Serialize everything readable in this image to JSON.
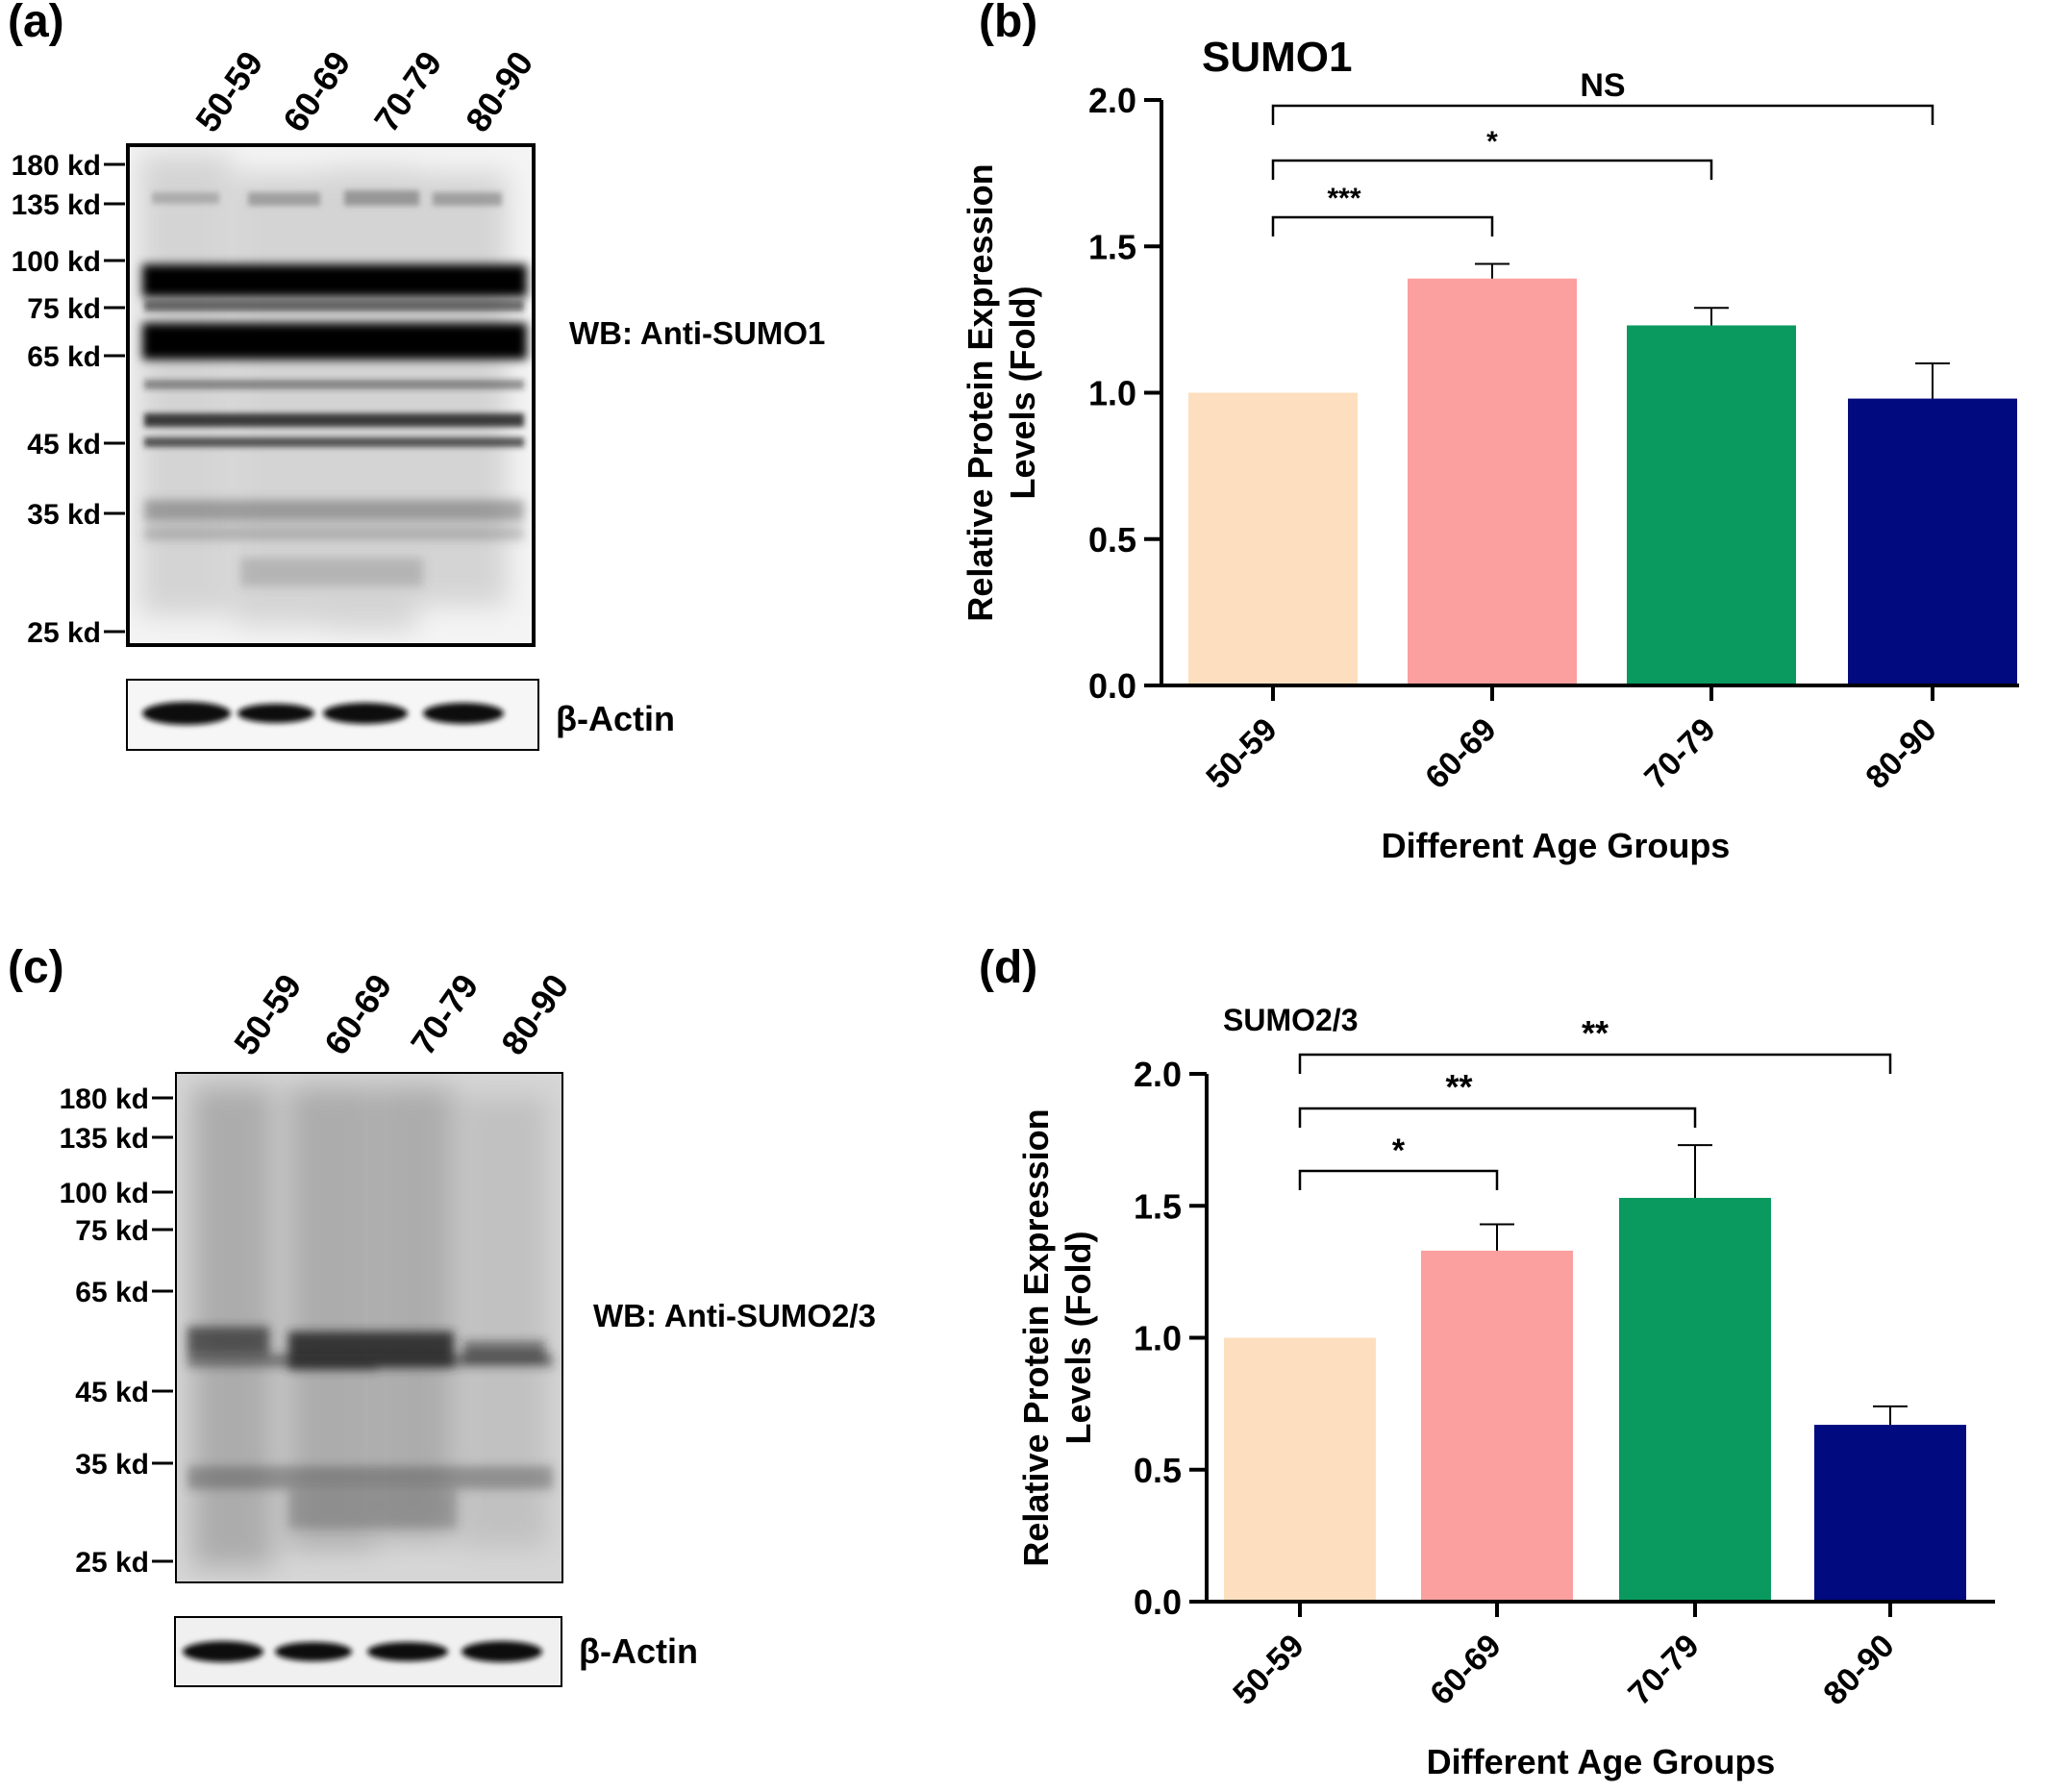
{
  "panel_labels": [
    "(a)",
    "(b)",
    "(c)",
    "(d)"
  ],
  "blots": [
    {
      "lanes": [
        "50-59",
        "60-69",
        "70-79",
        "80-90"
      ],
      "markers": [
        "180 kd",
        "135 kd",
        "100 kd",
        "75 kd",
        "65 kd",
        "45 kd",
        "35 kd",
        "25 kd"
      ],
      "antibody_label": "WB: Anti-SUMO1",
      "loading_label": "β-Actin"
    },
    {
      "lanes": [
        "50-59",
        "60-69",
        "70-79",
        "80-90"
      ],
      "markers": [
        "180 kd",
        "135 kd",
        "100 kd",
        "75 kd",
        "65 kd",
        "45 kd",
        "35 kd",
        "25 kd"
      ],
      "antibody_label": "WB: Anti-SUMO2/3",
      "loading_label": "β-Actin"
    }
  ],
  "chart_data": [
    {
      "type": "bar",
      "title": "SUMO1",
      "categories": [
        "50-59",
        "60-69",
        "70-79",
        "80-90"
      ],
      "values": [
        1.0,
        1.39,
        1.23,
        0.98
      ],
      "errors": [
        0,
        0.05,
        0.06,
        0.12
      ],
      "colors": [
        "#FDDFBF",
        "#FB9F9F",
        "#0A9A5F",
        "#010A7E"
      ],
      "xlabel": "Different Age Groups",
      "ylabel": "Relative Protein Expression Levels (Fold)",
      "ylim": [
        0,
        2.0
      ],
      "yticks": [
        "0.0",
        "0.5",
        "1.0",
        "1.5",
        "2.0"
      ],
      "grid": false,
      "significance": [
        {
          "from": "50-59",
          "to": "60-69",
          "label": "***"
        },
        {
          "from": "50-59",
          "to": "70-79",
          "label": "*"
        },
        {
          "from": "50-59",
          "to": "80-90",
          "label": "NS"
        }
      ]
    },
    {
      "type": "bar",
      "title": "SUMO2/3",
      "categories": [
        "50-59",
        "60-69",
        "70-79",
        "80-90"
      ],
      "values": [
        1.0,
        1.33,
        1.53,
        0.67
      ],
      "errors": [
        0,
        0.1,
        0.2,
        0.07
      ],
      "colors": [
        "#FDDFBF",
        "#FB9F9F",
        "#0A9A5F",
        "#010A7E"
      ],
      "xlabel": "Different Age Groups",
      "ylabel": "Relative Protein Expression Levels (Fold)",
      "ylim": [
        0,
        2.0
      ],
      "yticks": [
        "0.0",
        "0.5",
        "1.0",
        "1.5",
        "2.0"
      ],
      "grid": false,
      "significance": [
        {
          "from": "50-59",
          "to": "60-69",
          "label": "*"
        },
        {
          "from": "50-59",
          "to": "70-79",
          "label": "**"
        },
        {
          "from": "50-59",
          "to": "80-90",
          "label": "**"
        }
      ]
    }
  ]
}
